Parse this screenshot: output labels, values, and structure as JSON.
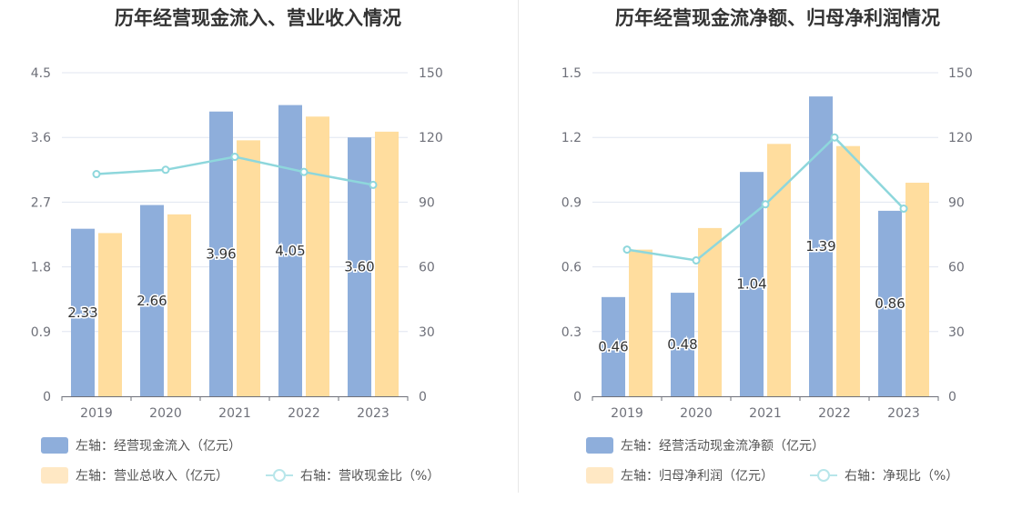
{
  "chart_data": [
    {
      "type": "bar",
      "title": "历年经营现金流入、营业收入情况",
      "categories": [
        "2019",
        "2020",
        "2021",
        "2022",
        "2023"
      ],
      "left_axis": {
        "min": 0,
        "max": 4.5,
        "ticks": [
          "0",
          "0.9",
          "1.8",
          "2.7",
          "3.6",
          "4.5"
        ]
      },
      "right_axis": {
        "min": 0,
        "max": 150,
        "ticks": [
          "0",
          "30",
          "60",
          "90",
          "120",
          "150"
        ]
      },
      "grid": true,
      "legend_position": "bottom-left",
      "series": [
        {
          "name": "左轴：经营现金流入（亿元）",
          "kind": "bar",
          "axis": "left",
          "color": "#8eaedb",
          "values": [
            2.33,
            2.66,
            3.96,
            4.05,
            3.6
          ],
          "labels": [
            "2.33",
            "2.66",
            "3.96",
            "4.05",
            "3.60"
          ]
        },
        {
          "name": "左轴：营业总收入（亿元）",
          "kind": "bar",
          "axis": "left",
          "color": "#ffdd9e",
          "values": [
            2.27,
            2.53,
            3.56,
            3.89,
            3.68
          ]
        },
        {
          "name": "右轴：营收现金比（%）",
          "kind": "line",
          "axis": "right",
          "color": "#8ed7dc",
          "values": [
            103,
            105,
            111,
            104,
            98
          ]
        }
      ]
    },
    {
      "type": "bar",
      "title": "历年经营现金流净额、归母净利润情况",
      "categories": [
        "2019",
        "2020",
        "2021",
        "2022",
        "2023"
      ],
      "left_axis": {
        "min": 0,
        "max": 1.5,
        "ticks": [
          "0",
          "0.3",
          "0.6",
          "0.9",
          "1.2",
          "1.5"
        ]
      },
      "right_axis": {
        "min": 0,
        "max": 150,
        "ticks": [
          "0",
          "30",
          "60",
          "90",
          "120",
          "150"
        ]
      },
      "grid": true,
      "legend_position": "bottom-left",
      "series": [
        {
          "name": "左轴：经营活动现金流净额（亿元）",
          "kind": "bar",
          "axis": "left",
          "color": "#8eaedb",
          "values": [
            0.46,
            0.48,
            1.04,
            1.39,
            0.86
          ],
          "labels": [
            "0.46",
            "0.48",
            "1.04",
            "1.39",
            "0.86"
          ]
        },
        {
          "name": "左轴：归母净利润（亿元）",
          "kind": "bar",
          "axis": "left",
          "color": "#ffdd9e",
          "values": [
            0.68,
            0.78,
            1.17,
            1.16,
            0.99
          ]
        },
        {
          "name": "右轴：净现比（%）",
          "kind": "line",
          "axis": "right",
          "color": "#8ed7dc",
          "values": [
            68,
            63,
            89,
            120,
            87
          ]
        }
      ]
    }
  ]
}
